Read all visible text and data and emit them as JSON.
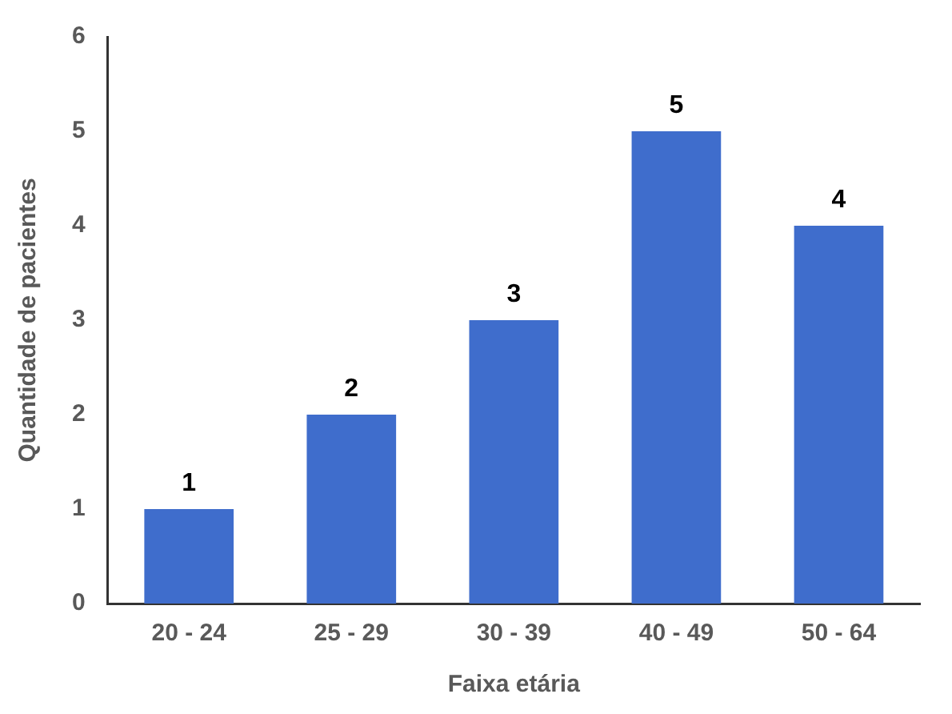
{
  "chart_data": {
    "type": "bar",
    "xlabel": "Faixa etária",
    "ylabel": "Quantidade de pacientes",
    "categories": [
      "20 - 24",
      "25 - 29",
      "30 - 39",
      "40 - 49",
      "50 - 64"
    ],
    "values": [
      1,
      2,
      3,
      5,
      4
    ],
    "color": "#3f6dcc",
    "ylim": [
      0,
      6
    ],
    "yticks": [
      0,
      1,
      2,
      3,
      4,
      5,
      6
    ],
    "grid": false,
    "legend": false,
    "data_labels": true
  }
}
